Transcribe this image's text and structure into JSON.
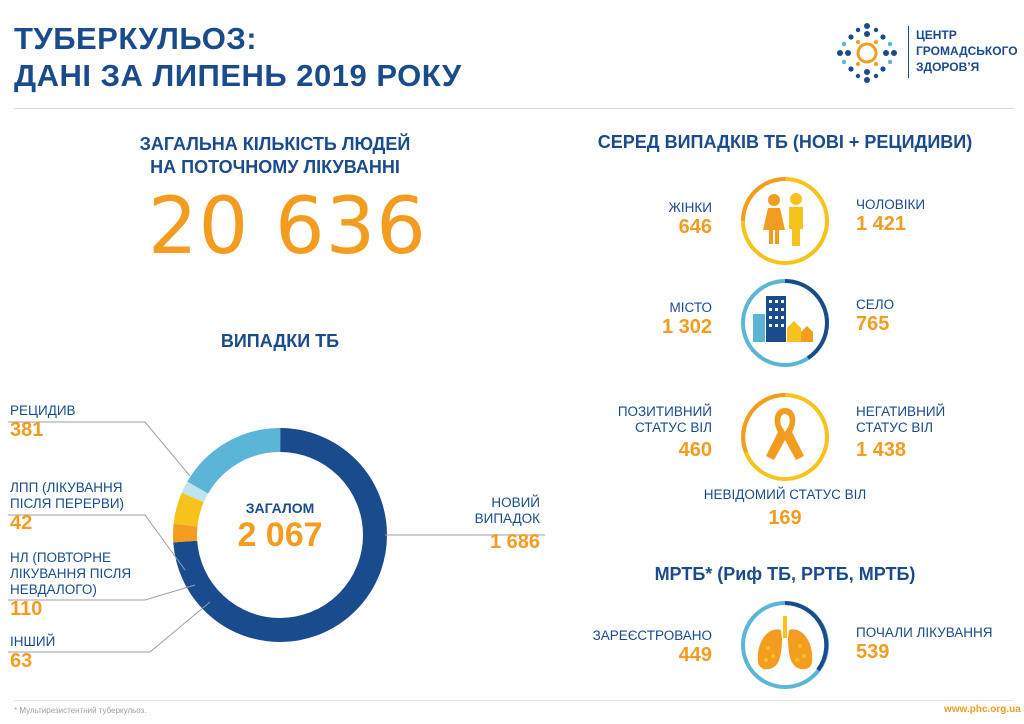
{
  "header": {
    "title_line1": "ТУБЕРКУЛЬОЗ:",
    "title_line2": "ДАНІ ЗА ЛИПЕНЬ 2019 РОКУ",
    "logo_line1": "ЦЕНТР",
    "logo_line2": "ГРОМАДСЬКОГО",
    "logo_line3": "ЗДОРОВ’Я"
  },
  "treatment": {
    "heading_line1": "ЗАГАЛЬНА КІЛЬКІСТЬ ЛЮДЕЙ",
    "heading_line2": "НА ПОТОЧНОМУ ЛІКУВАННІ",
    "total": "20 636"
  },
  "cases": {
    "heading": "ВИПАДКИ ТБ",
    "total_label": "ЗАГАЛОМ",
    "total_value": "2 067",
    "segments": [
      {
        "label": "НОВИЙ ВИПАДОК",
        "label_line1": "НОВИЙ",
        "label_line2": "ВИПАДОК",
        "value": "1 686",
        "color": "#1a4b8c"
      },
      {
        "label": "РЕЦИДИВ",
        "value": "381",
        "color": "#5bb5d6"
      },
      {
        "label": "ЛПП (ЛІКУВАННЯ ПІСЛЯ ПЕРЕРВИ)",
        "label_line1": "ЛПП (ЛІКУВАННЯ",
        "label_line2": "ПІСЛЯ ПЕРЕРВИ)",
        "value": "42",
        "color": "#bfe3ef"
      },
      {
        "label": "НЛ (ПОВТОРНЕ ЛІКУВАННЯ ПІСЛЯ НЕВДАЛОГО)",
        "label_line1": "НЛ (ПОВТОРНЕ",
        "label_line2": "ЛІКУВАННЯ ПІСЛЯ",
        "label_line3": "НЕВДАЛОГО)",
        "value": "110",
        "color": "#f7c21b"
      },
      {
        "label": "ІНШИЙ",
        "value": "63",
        "color": "#f39c1f"
      }
    ]
  },
  "among": {
    "heading": "СЕРЕД ВИПАДКІВ ТБ (НОВІ + РЕЦИДИВИ)",
    "women_label": "ЖІНКИ",
    "women_value": "646",
    "men_label": "ЧОЛОВІКИ",
    "men_value": "1 421",
    "city_label": "МІСТО",
    "city_value": "1 302",
    "village_label": "СЕЛО",
    "village_value": "765",
    "hiv_pos_line1": "ПОЗИТИВНИЙ",
    "hiv_pos_line2": "СТАТУС ВІЛ",
    "hiv_pos_value": "460",
    "hiv_neg_line1": "НЕГАТИВНИЙ",
    "hiv_neg_line2": "СТАТУС  ВІЛ",
    "hiv_neg_value": "1 438",
    "hiv_unknown_label": "НЕВІДОМИЙ СТАТУС ВІЛ",
    "hiv_unknown_value": "169"
  },
  "mdr": {
    "heading": "МРТБ* (Риф ТБ, РРТБ, МРТБ)",
    "registered_label": "ЗАРЕЄСТРОВАНО",
    "registered_value": "449",
    "started_label": "ПОЧАЛИ ЛІКУВАННЯ",
    "started_value": "539"
  },
  "footer": {
    "footnote": "* Мультирезистентний туберкульоз.",
    "url": "www.phc.org.ua"
  },
  "colors": {
    "navy": "#1a4b8c",
    "orange": "#f39c1f",
    "yellow": "#f7c21b",
    "lightblue": "#5bb5d6",
    "paleblue": "#bfe3ef"
  }
}
